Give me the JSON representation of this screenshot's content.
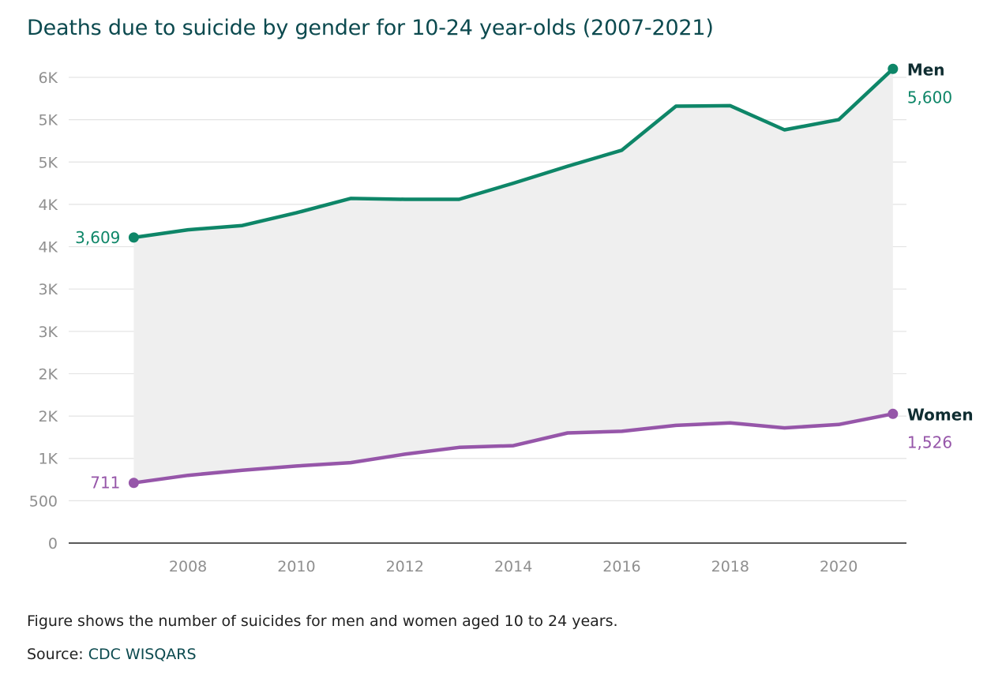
{
  "chart_data": {
    "type": "line",
    "title": "Deaths due to suicide by gender for 10-24 year-olds (2007-2021)",
    "xlabel": "",
    "ylabel": "",
    "x": [
      2007,
      2008,
      2009,
      2010,
      2011,
      2012,
      2013,
      2014,
      2015,
      2016,
      2017,
      2018,
      2019,
      2020,
      2021
    ],
    "x_ticks": [
      2008,
      2010,
      2012,
      2014,
      2016,
      2018,
      2020
    ],
    "x_tick_labels": [
      "2008",
      "2010",
      "2012",
      "2014",
      "2016",
      "2018",
      "2020"
    ],
    "xlim": [
      2005.8,
      2021.25
    ],
    "y_ticks": [
      0,
      500,
      1000,
      1500,
      2000,
      2500,
      3000,
      3500,
      4000,
      4500,
      5000,
      5500
    ],
    "y_tick_labels": [
      "0",
      "500",
      "1K",
      "2K",
      "2K",
      "3K",
      "3K",
      "4K",
      "4K",
      "5K",
      "5K",
      "6K"
    ],
    "ylim": [
      0,
      5500
    ],
    "grid": true,
    "shaded_area_between_series": true,
    "series": [
      {
        "name": "Men",
        "color": "#0e8668",
        "values": [
          3609,
          3700,
          3750,
          3900,
          4070,
          4060,
          4060,
          4250,
          4450,
          4640,
          5160,
          5165,
          4880,
          5000,
          5600
        ],
        "start_label": "3,609",
        "end_label": "5,600"
      },
      {
        "name": "Women",
        "color": "#9656a9",
        "values": [
          711,
          800,
          860,
          910,
          950,
          1050,
          1130,
          1150,
          1300,
          1320,
          1390,
          1420,
          1360,
          1400,
          1526
        ],
        "start_label": "711",
        "end_label": "1,526"
      }
    ]
  },
  "note": "Figure shows the number of suicides for men and women aged 10 to 24 years.",
  "source": {
    "prefix": "Source: ",
    "link_text": "CDC WISQARS"
  }
}
